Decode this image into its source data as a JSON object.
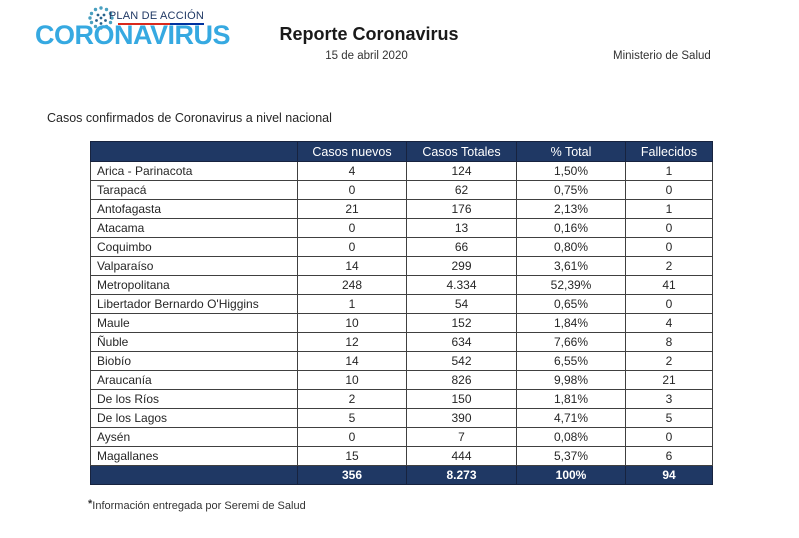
{
  "logo": {
    "plan_text": "PLAN DE ACCIÓN",
    "brand_text": "CORONAVIRUS",
    "brand_color": "#36A9E1",
    "plan_color": "#1F3864",
    "underline_red": "#DA291C",
    "underline_blue": "#0032A0"
  },
  "header": {
    "title": "Reporte Coronavirus",
    "date": "15 de abril 2020",
    "ministry": "Ministerio de Salud"
  },
  "section_title": "Casos confirmados de Coronavirus a nivel nacional",
  "table": {
    "header_bg": "#1F3864",
    "columns": [
      "",
      "Casos nuevos",
      "Casos Totales",
      "% Total",
      "Fallecidos"
    ],
    "rows": [
      {
        "region": "Arica - Parinacota",
        "nuevos": "4",
        "totales": "124",
        "pct": "1,50%",
        "fallecidos": "1"
      },
      {
        "region": "Tarapacá",
        "nuevos": "0",
        "totales": "62",
        "pct": "0,75%",
        "fallecidos": "0"
      },
      {
        "region": "Antofagasta",
        "nuevos": "21",
        "totales": "176",
        "pct": "2,13%",
        "fallecidos": "1"
      },
      {
        "region": "Atacama",
        "nuevos": "0",
        "totales": "13",
        "pct": "0,16%",
        "fallecidos": "0"
      },
      {
        "region": "Coquimbo",
        "nuevos": "0",
        "totales": "66",
        "pct": "0,80%",
        "fallecidos": "0"
      },
      {
        "region": "Valparaíso",
        "nuevos": "14",
        "totales": "299",
        "pct": "3,61%",
        "fallecidos": "2"
      },
      {
        "region": "Metropolitana",
        "nuevos": "248",
        "totales": "4.334",
        "pct": "52,39%",
        "fallecidos": "41"
      },
      {
        "region": "Libertador Bernardo O'Higgins",
        "nuevos": "1",
        "totales": "54",
        "pct": "0,65%",
        "fallecidos": "0"
      },
      {
        "region": "Maule",
        "nuevos": "10",
        "totales": "152",
        "pct": "1,84%",
        "fallecidos": "4"
      },
      {
        "region": "Ñuble",
        "nuevos": "12",
        "totales": "634",
        "pct": "7,66%",
        "fallecidos": "8"
      },
      {
        "region": "Biobío",
        "nuevos": "14",
        "totales": "542",
        "pct": "6,55%",
        "fallecidos": "2"
      },
      {
        "region": "Araucanía",
        "nuevos": "10",
        "totales": "826",
        "pct": "9,98%",
        "fallecidos": "21"
      },
      {
        "region": "De los Ríos",
        "nuevos": "2",
        "totales": "150",
        "pct": "1,81%",
        "fallecidos": "3"
      },
      {
        "region": "De los Lagos",
        "nuevos": "5",
        "totales": "390",
        "pct": "4,71%",
        "fallecidos": "5"
      },
      {
        "region": "Aysén",
        "nuevos": "0",
        "totales": "7",
        "pct": "0,08%",
        "fallecidos": "0"
      },
      {
        "region": "Magallanes",
        "nuevos": "15",
        "totales": "444",
        "pct": "5,37%",
        "fallecidos": "6"
      }
    ],
    "totals": {
      "region": "",
      "nuevos": "356",
      "totales": "8.273",
      "pct": "100%",
      "fallecidos": "94"
    }
  },
  "footnote": {
    "asterisk": "*",
    "text": "Información entregada por Seremi de Salud"
  }
}
